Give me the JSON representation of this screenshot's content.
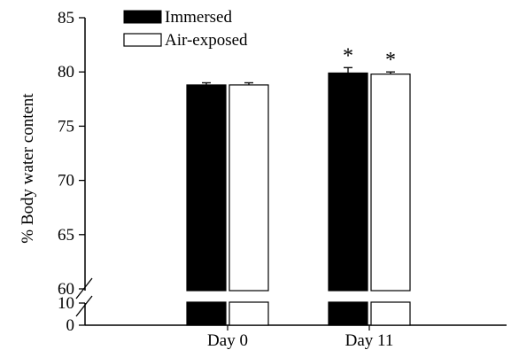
{
  "chart_data": {
    "type": "bar",
    "ylabel": "% Body water content",
    "categories": [
      "Day 0",
      "Day 11"
    ],
    "series": [
      {
        "name": "Immersed",
        "values": [
          78.8,
          79.9
        ],
        "errors": [
          0.2,
          0.5
        ],
        "color": "#000000"
      },
      {
        "name": "Air-exposed",
        "values": [
          78.8,
          79.8
        ],
        "errors": [
          0.2,
          0.2
        ],
        "color": "#ffffff"
      }
    ],
    "y_ticks_upper": [
      "85",
      "80",
      "75",
      "70",
      "65",
      "60"
    ],
    "y_ticks_lower": [
      "10",
      "0"
    ],
    "ylim_upper": [
      60,
      85
    ],
    "ylim_lower": [
      0,
      10
    ],
    "axis_break": true,
    "significance": [
      {
        "category": "Day 11",
        "series": "Immersed",
        "label": "*"
      },
      {
        "category": "Day 11",
        "series": "Air-exposed",
        "label": "*"
      }
    ],
    "legend_position": "top-left"
  }
}
